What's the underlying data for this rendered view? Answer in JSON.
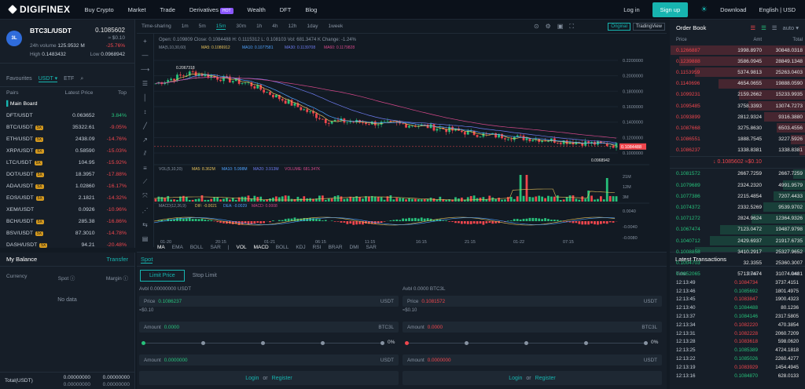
{
  "nav": {
    "logo": "DIGIFINEX",
    "items": [
      "Buy Crypto",
      "Market",
      "Trade",
      "Derivatives",
      "Wealth",
      "DFT",
      "Blog"
    ],
    "hot": "HOT",
    "login": "Log in",
    "signup": "Sign up",
    "download": "Download",
    "lang": "English | USD"
  },
  "pair": {
    "name": "BTC3L/USDT",
    "price": "0.1085602",
    "usd": "≈ $0.10",
    "vol_label": "24h volume",
    "vol": "125.9532 M",
    "change": "-25.76%",
    "high_label": "High",
    "high": "0.1483432",
    "low_label": "Low",
    "low": "0.0968942",
    "coin": "3L"
  },
  "fav": {
    "favourites": "Favourites",
    "usdt": "USDT",
    "etf": "ETF",
    "col_pairs": "Pairs",
    "col_latest": "Latest Price",
    "col_top": "Top",
    "main": "Main Board"
  },
  "pairs": [
    {
      "p": "DFT/USDT",
      "lev": "",
      "v": "0.063652",
      "c": "3.84%",
      "up": true
    },
    {
      "p": "BTC/USDT",
      "lev": "5X",
      "v": "35322.61",
      "c": "-9.05%",
      "up": false
    },
    {
      "p": "ETH/USDT",
      "lev": "5X",
      "v": "2438.09",
      "c": "-14.76%",
      "up": false
    },
    {
      "p": "XRP/USDT",
      "lev": "5X",
      "v": "0.58590",
      "c": "-15.03%",
      "up": false
    },
    {
      "p": "LTC/USDT",
      "lev": "5X",
      "v": "104.95",
      "c": "-15.92%",
      "up": false
    },
    {
      "p": "DOT/USDT",
      "lev": "5X",
      "v": "18.3957",
      "c": "-17.88%",
      "up": false
    },
    {
      "p": "ADA/USDT",
      "lev": "5X",
      "v": "1.02860",
      "c": "-16.17%",
      "up": false
    },
    {
      "p": "EOS/USDT",
      "lev": "5X",
      "v": "2.1821",
      "c": "-14.32%",
      "up": false
    },
    {
      "p": "XEM/USDT",
      "lev": "",
      "v": "0.0926",
      "c": "-10.96%",
      "up": false
    },
    {
      "p": "BCH/USDT",
      "lev": "5X",
      "v": "285.38",
      "c": "-16.86%",
      "up": false
    },
    {
      "p": "BSV/USDT",
      "lev": "5X",
      "v": "87.3010",
      "c": "-14.78%",
      "up": false
    },
    {
      "p": "DASH/USDT",
      "lev": "5X",
      "v": "94.21",
      "c": "-20.48%",
      "up": false
    }
  ],
  "balance": {
    "title": "My Balance",
    "transfer": "Transfer",
    "currency": "Currency",
    "spot": "Spot",
    "margin": "Margin",
    "nodata": "No data",
    "total": "Total(USDT)",
    "t1": "0.00000000",
    "t2": "0.00000000",
    "t3": "0.00000000",
    "t4": "0.00000000"
  },
  "chart": {
    "tabs": [
      "Time-sharing",
      "1m",
      "5m",
      "15m",
      "30m",
      "1h",
      "4h",
      "12h",
      "1day",
      "1week"
    ],
    "active": "15m",
    "original": "Original",
    "tv": "TradingView",
    "ohlc": "Open: 0.109809   Close: 0.1084488   H: 0.1115312   L: 0.108103   Vol: 681.3474 K   Change: -1.24%",
    "ma_label": "MA(5,10,30,60)",
    "ma5": "MA5: 0.1086912",
    "ma10": "MA10: 0.1077581",
    "ma30": "MA30: 0.1139708",
    "ma60": "MA60: 0.1179828",
    "vol_label": "VOL(5,10,20)",
    "vma5": "MA5: 8.362M",
    "vma10": "MA10: 5.998M",
    "vma20": "MA20: 3.913M",
    "vvol": "VOLUME: 681.347K",
    "macd_label": "MACD(12,26,9)",
    "dif": "DIF: -0.0021",
    "dea": "DEA: -0.0029",
    "macd": "MACD: 0.0008",
    "high_mark": "0.2067318",
    "low_mark": "0.0968942",
    "last": "0.1084488",
    "yticks": [
      "0.2200000",
      "0.2000000",
      "0.1800000",
      "0.1600000",
      "0.1400000",
      "0.1200000",
      "0.1000000"
    ],
    "vticks": [
      "21M",
      "12M",
      "3M"
    ],
    "mticks": [
      "0.0040",
      "-0.0040",
      "-0.0080"
    ],
    "xticks": [
      "01-20",
      "20:15",
      "01-21",
      "06:15",
      "11:15",
      "16:15",
      "21:15",
      "01-22",
      "07:15"
    ],
    "indicators": [
      "MA",
      "EMA",
      "BOLL",
      "SAR",
      "VOL",
      "MACD",
      "BOLL",
      "KDJ",
      "RSI",
      "BRAR",
      "DMI",
      "SAR"
    ],
    "active_ind": [
      "MA",
      "VOL",
      "MACD"
    ]
  },
  "book": {
    "title": "Order Book",
    "auto": "auto",
    "c1": "Price",
    "c2": "Amt",
    "c3": "Total",
    "asks": [
      [
        "0.1266887",
        "1998.8970",
        "30848.0318"
      ],
      [
        "0.1239888",
        "3586.0945",
        "28849.1348"
      ],
      [
        "0.1153959",
        "5374.9813",
        "25263.0403"
      ],
      [
        "0.1140696",
        "4654.0655",
        "19888.0590"
      ],
      [
        "0.1099231",
        "2159.2662",
        "15233.9935"
      ],
      [
        "0.1095485",
        "3758.3393",
        "13074.7273"
      ],
      [
        "0.1093899",
        "2812.9324",
        "9316.3880"
      ],
      [
        "0.1087668",
        "3275.8630",
        "6503.4556"
      ],
      [
        "0.1086551",
        "1888.7545",
        "3227.5926"
      ],
      [
        "0.1086237",
        "1338.8381",
        "1338.8381"
      ]
    ],
    "mid": "↓ 0.1085602 ≈$0.10",
    "bids": [
      [
        "0.1081572",
        "2667.7259",
        "2667.7259"
      ],
      [
        "0.1079689",
        "2324.2320",
        "4991.9579"
      ],
      [
        "0.1077386",
        "2215.4854",
        "7207.4433"
      ],
      [
        "0.1074372",
        "2332.5269",
        "9539.9702"
      ],
      [
        "0.1071272",
        "2824.9624",
        "12364.9326"
      ],
      [
        "0.1067474",
        "7123.0472",
        "19487.9798"
      ],
      [
        "0.1040712",
        "2429.6937",
        "21917.6735"
      ],
      [
        "0.1008858",
        "3410.2917",
        "25327.9652"
      ],
      [
        "0.1004703",
        "32.3355",
        "25360.3007"
      ],
      [
        "0.0952065",
        "5713.7474",
        "31074.0481"
      ]
    ]
  },
  "trades": {
    "title": "Latest Transactions",
    "c1": "Time",
    "c2": "Price",
    "c3": "Amt",
    "rows": [
      [
        "12:13:49",
        "0.1084734",
        "3737.4151",
        false
      ],
      [
        "12:13:46",
        "0.1085692",
        "1801.4975",
        true
      ],
      [
        "12:13:45",
        "0.1083847",
        "1900.4323",
        false
      ],
      [
        "12:13:40",
        "0.1084488",
        "80.1236",
        true
      ],
      [
        "12:13:37",
        "0.1084146",
        "2317.5805",
        true
      ],
      [
        "12:13:34",
        "0.1082220",
        "470.3854",
        false
      ],
      [
        "12:13:31",
        "0.1082228",
        "2060.7209",
        false
      ],
      [
        "12:13:28",
        "0.1083618",
        "598.0620",
        false
      ],
      [
        "12:13:25",
        "0.1085389",
        "4724.1818",
        true
      ],
      [
        "12:13:22",
        "0.1085026",
        "2260.4277",
        true
      ],
      [
        "12:13:19",
        "0.1083929",
        "1454.4945",
        false
      ],
      [
        "12:13:16",
        "0.1084870",
        "628.0133",
        true
      ]
    ]
  },
  "spot": {
    "tab": "Spot",
    "limit": "Limit Price",
    "stop": "Stop Limit",
    "buy": {
      "avbl": "Avbl 0.00000000 USDT",
      "price_label": "Price",
      "price": "0.1086237",
      "unit": "USDT",
      "approx": "≈$0.10",
      "amount_label": "Amount",
      "amount": "0.0000",
      "amt_unit": "BTC3L",
      "pct": "0%",
      "total_label": "Amount",
      "total": "0.0000000",
      "total_unit": "USDT"
    },
    "sell": {
      "avbl": "Avbl 0.0000 BTC3L",
      "price_label": "Price",
      "price": "0.1081572",
      "unit": "USDT",
      "approx": "≈$0.10",
      "amount_label": "Amount",
      "amount": "0.0000",
      "amt_unit": "BTC3L",
      "pct": "0%",
      "total_label": "Amount",
      "total": "0.0000000",
      "total_unit": "USDT"
    },
    "login": "Login",
    "or": "or",
    "register": "Register"
  },
  "colors": {
    "accent": "#17b5b0",
    "up": "#27c17b",
    "down": "#f0464d",
    "bg": "#121a23"
  }
}
